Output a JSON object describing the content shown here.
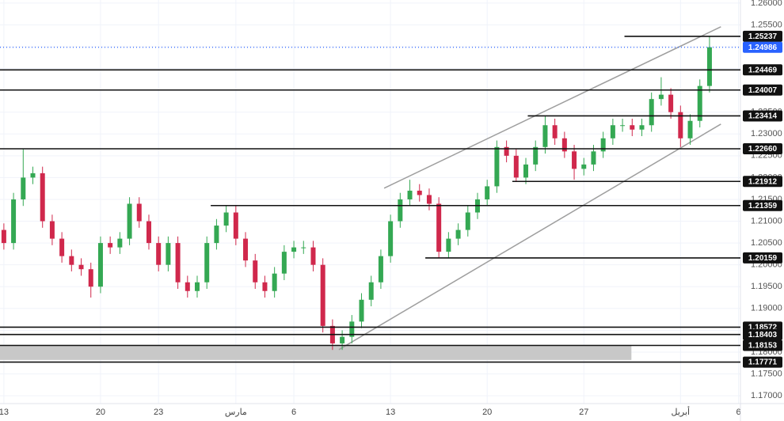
{
  "chart_data": {
    "type": "candlestick",
    "up_color": "#34a853",
    "down_color": "#d0284c",
    "ylim": [
      1.1682,
      1.2607
    ],
    "yticks": [
      {
        "value": 1.17,
        "label": "1.17000"
      },
      {
        "value": 1.175,
        "label": "1.17500"
      },
      {
        "value": 1.18,
        "label": "1.18000"
      },
      {
        "value": 1.185,
        "label": "1.18500"
      },
      {
        "value": 1.19,
        "label": "1.19000"
      },
      {
        "value": 1.195,
        "label": "1.19500"
      },
      {
        "value": 1.2,
        "label": "1.20000"
      },
      {
        "value": 1.205,
        "label": "1.20500"
      },
      {
        "value": 1.21,
        "label": "1.21000"
      },
      {
        "value": 1.215,
        "label": "1.21500"
      },
      {
        "value": 1.22,
        "label": "1.22000"
      },
      {
        "value": 1.225,
        "label": "1.22500"
      },
      {
        "value": 1.23,
        "label": "1.23000"
      },
      {
        "value": 1.235,
        "label": "1.23500"
      },
      {
        "value": 1.24,
        "label": "1.24000"
      },
      {
        "value": 1.245,
        "label": "1.24500"
      },
      {
        "value": 1.25,
        "label": "1.25000"
      },
      {
        "value": 1.255,
        "label": "1.25500"
      },
      {
        "value": 1.26,
        "label": "1.26000"
      }
    ],
    "xlim": [
      -0.2,
      38.1
    ],
    "xticks": [
      {
        "value": 0,
        "label": "13"
      },
      {
        "value": 5,
        "label": "20"
      },
      {
        "value": 8,
        "label": "23"
      },
      {
        "value": 12,
        "label": "مارس"
      },
      {
        "value": 15,
        "label": "6"
      },
      {
        "value": 20,
        "label": "13"
      },
      {
        "value": 25,
        "label": "20"
      },
      {
        "value": 30,
        "label": "27"
      },
      {
        "value": 35,
        "label": "أبريل"
      },
      {
        "value": 38,
        "label": "6"
      }
    ],
    "grid": true,
    "x": [
      0,
      0.5,
      1,
      1.5,
      2,
      2.5,
      3,
      3.5,
      4,
      4.5,
      5,
      5.5,
      6,
      6.5,
      7,
      7.5,
      8,
      8.5,
      9,
      9.5,
      10,
      10.5,
      11,
      11.5,
      12,
      12.5,
      13,
      13.5,
      14,
      14.5,
      15,
      15.5,
      16,
      16.5,
      17,
      17.5,
      18,
      18.5,
      19,
      19.5,
      20,
      20.5,
      21,
      21.5,
      22,
      22.5,
      23,
      23.5,
      24,
      24.5,
      25,
      25.5,
      26,
      26.5,
      27,
      27.5,
      28,
      28.5,
      29,
      29.5,
      30,
      30.5,
      31,
      31.5,
      32,
      32.5,
      33,
      33.5,
      34,
      34.5,
      35,
      35.5,
      36,
      36.5
    ],
    "open": [
      1.208,
      1.205,
      1.215,
      1.22,
      1.221,
      1.21,
      1.206,
      1.202,
      1.2,
      1.199,
      1.195,
      1.205,
      1.204,
      1.206,
      1.214,
      1.21,
      1.205,
      1.2,
      1.205,
      1.196,
      1.194,
      1.196,
      1.205,
      1.209,
      1.212,
      1.206,
      1.201,
      1.196,
      1.194,
      1.198,
      1.203,
      1.204,
      1.204,
      1.2,
      1.186,
      1.182,
      1.1835,
      1.187,
      1.192,
      1.196,
      1.202,
      1.21,
      1.215,
      1.217,
      1.216,
      1.214,
      1.203,
      1.206,
      1.208,
      1.212,
      1.215,
      1.218,
      1.227,
      1.225,
      1.22,
      1.223,
      1.227,
      1.232,
      1.229,
      1.226,
      1.222,
      1.223,
      1.226,
      1.229,
      1.232,
      1.232,
      1.231,
      1.232,
      1.238,
      1.239,
      1.235,
      1.229,
      1.233,
      1.241
    ],
    "high": [
      1.2095,
      1.2165,
      1.2265,
      1.2225,
      1.2225,
      1.2115,
      1.2075,
      1.2035,
      1.2015,
      1.2005,
      1.2065,
      1.2065,
      1.2075,
      1.2155,
      1.2155,
      1.2115,
      1.2065,
      1.2065,
      1.2065,
      1.1975,
      1.1975,
      1.2065,
      1.2105,
      1.2136,
      1.2135,
      1.2075,
      1.2025,
      1.1975,
      1.1995,
      1.2045,
      1.2055,
      1.2055,
      1.2055,
      1.2015,
      1.1875,
      1.185,
      1.1885,
      1.1935,
      1.1975,
      1.2035,
      1.2115,
      1.2165,
      1.2195,
      1.2185,
      1.2175,
      1.2155,
      1.2075,
      1.2095,
      1.2135,
      1.2165,
      1.2195,
      1.2285,
      1.2285,
      1.2265,
      1.2245,
      1.2285,
      1.2341,
      1.2335,
      1.2305,
      1.2275,
      1.2245,
      1.2275,
      1.2305,
      1.2335,
      1.2335,
      1.2335,
      1.2335,
      1.2395,
      1.243,
      1.2405,
      1.2365,
      1.2345,
      1.2425,
      1.2524
    ],
    "low": [
      1.2035,
      1.2035,
      1.2135,
      1.2185,
      1.2085,
      1.2045,
      1.2005,
      1.1985,
      1.1975,
      1.1925,
      1.1935,
      1.2025,
      1.2025,
      1.2045,
      1.2085,
      1.2035,
      1.1985,
      1.1985,
      1.1945,
      1.1925,
      1.1925,
      1.1945,
      1.2035,
      1.2075,
      1.2045,
      1.1995,
      1.1945,
      1.1925,
      1.1925,
      1.1965,
      1.2015,
      1.2025,
      1.1985,
      1.1845,
      1.1805,
      1.1805,
      1.182,
      1.1855,
      1.1905,
      1.1945,
      1.2005,
      1.2085,
      1.2135,
      1.2145,
      1.2125,
      1.2016,
      1.2015,
      1.2045,
      1.2065,
      1.2105,
      1.2135,
      1.2165,
      1.2235,
      1.2191,
      1.2185,
      1.2215,
      1.2255,
      1.2275,
      1.2245,
      1.2195,
      1.2205,
      1.2215,
      1.2245,
      1.2275,
      1.2305,
      1.2295,
      1.2295,
      1.2305,
      1.2365,
      1.2335,
      1.227,
      1.2275,
      1.2315,
      1.2395
    ],
    "close": [
      1.205,
      1.215,
      1.22,
      1.221,
      1.21,
      1.206,
      1.202,
      1.2,
      1.199,
      1.195,
      1.205,
      1.204,
      1.206,
      1.214,
      1.21,
      1.205,
      1.2,
      1.205,
      1.196,
      1.194,
      1.196,
      1.205,
      1.209,
      1.212,
      1.206,
      1.201,
      1.196,
      1.194,
      1.198,
      1.203,
      1.204,
      1.204,
      1.2,
      1.186,
      1.182,
      1.1835,
      1.187,
      1.192,
      1.196,
      1.202,
      1.21,
      1.215,
      1.217,
      1.216,
      1.214,
      1.203,
      1.206,
      1.208,
      1.212,
      1.215,
      1.218,
      1.227,
      1.225,
      1.22,
      1.223,
      1.227,
      1.232,
      1.229,
      1.226,
      1.222,
      1.223,
      1.226,
      1.229,
      1.232,
      1.232,
      1.231,
      1.232,
      1.238,
      1.239,
      1.235,
      1.229,
      1.233,
      1.241,
      1.24986
    ],
    "last_price": 1.24986,
    "levels": [
      {
        "value": 1.25237,
        "start": 32.1
      },
      {
        "value": 1.24469
      },
      {
        "value": 1.24007
      },
      {
        "value": 1.23414,
        "start": 27.1
      },
      {
        "value": 1.2266,
        "label": "1.22660"
      },
      {
        "value": 1.21912,
        "start": 26.3
      },
      {
        "value": 1.21359,
        "start": 10.7
      },
      {
        "value": 1.20159,
        "start": 21.8
      },
      {
        "value": 1.18572
      },
      {
        "value": 1.18403
      },
      {
        "value": 1.18153
      },
      {
        "value": 1.17771
      }
    ],
    "zone": {
      "from": 1.18153,
      "to": 1.1782,
      "end": 32.46
    },
    "channels": [
      {
        "x1": 19.67,
        "y1": 1.21757,
        "x2": 37.09,
        "y2": 1.25456
      },
      {
        "x1": 17.33,
        "y1": 1.18057,
        "x2": 37.09,
        "y2": 1.23226
      }
    ]
  }
}
